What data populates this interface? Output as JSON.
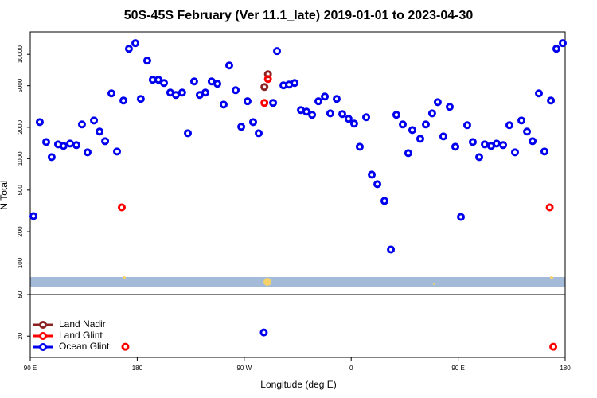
{
  "chart_data": {
    "type": "scatter",
    "title": "50S-45S February (Ver 11.1_late)   2019-01-01 to 2023-04-30",
    "x_label": "Longitude (deg E)",
    "y_label": "N Total",
    "log_y": true,
    "legend": "lower left",
    "xlim": [
      90,
      540
    ],
    "ylim": [
      12.5,
      16400
    ],
    "xticks": [
      {
        "value": 90,
        "label": "90 E"
      },
      180,
      {
        "value": 270,
        "label": "90 W"
      },
      {
        "value": 360,
        "label": "0"
      },
      {
        "value": 450,
        "label": "90 E"
      },
      {
        "value": 540,
        "label": "180"
      }
    ],
    "yticks": [
      20,
      50,
      100,
      200,
      500,
      1000,
      2000,
      5000,
      10000
    ],
    "series": [
      {
        "name": "Land Nadir",
        "color": "#8b2323",
        "x": [
          287,
          290
        ],
        "values": [
          4860,
          6440
        ]
      },
      {
        "name": "Land Glint",
        "color": "#ff0000",
        "x": [
          167,
          170,
          287,
          290,
          527,
          530
        ],
        "values": [
          342,
          15.8,
          3420,
          5800,
          342,
          15.8
        ]
      },
      {
        "name": "Ocean Glint",
        "color": "#0000ee",
        "x": [
          92.7,
          98,
          103.4,
          108,
          113.4,
          118,
          123.5,
          128.8,
          133.5,
          138.2,
          143.6,
          148.3,
          153,
          158.3,
          163,
          168.4,
          173,
          178.4,
          183,
          188.4,
          193,
          197.8,
          202.5,
          207.8,
          212.5,
          217.8,
          222.6,
          227.9,
          232.6,
          237.3,
          242.6,
          247.4,
          252.7,
          257.4,
          262.8,
          267.5,
          272.8,
          277.5,
          282.2,
          286.5,
          294.3,
          297.6,
          303,
          307.7,
          312.4,
          317.7,
          322.4,
          327.1,
          332.4,
          337.8,
          342.4,
          347.8,
          352.5,
          357.8,
          362.5,
          367.2,
          372.6,
          377.3,
          382,
          388,
          393.4,
          398,
          403.4,
          408,
          411.4,
          418.1,
          422.8,
          428.1,
          432.8,
          437.5,
          442.9,
          447.6,
          452.3,
          457.6,
          462.3,
          467.7,
          472.4,
          477.7,
          482.4,
          487.8,
          493.1,
          497.8,
          503.2,
          507.9,
          512.6,
          517.9,
          522.6,
          528,
          532.6,
          538
        ],
        "values": [
          282,
          2244,
          1445,
          1035,
          1372,
          1324,
          1396,
          1349,
          2130,
          1151,
          2324,
          1819,
          1472,
          4227,
          1172,
          3606,
          11300,
          12790,
          3740,
          8690,
          5700,
          5700,
          5310,
          4300,
          4080,
          4300,
          1754,
          5500,
          4080,
          4300,
          5500,
          5220,
          3300,
          7820,
          4530,
          2020,
          3550,
          2244,
          1754,
          21.7,
          3420,
          10730,
          5040,
          5130,
          5310,
          2920,
          2820,
          2630,
          3550,
          3940,
          2720,
          3740,
          2680,
          2410,
          2170,
          1302,
          2495,
          703,
          570,
          394,
          135,
          2630,
          2130,
          1130,
          1880,
          1552,
          2130,
          2720,
          3480,
          1635,
          3135,
          1302,
          277,
          2094,
          1445,
          1035,
          1372,
          1324,
          1396,
          1349,
          2094,
          1151,
          2324,
          1819,
          1472,
          4227,
          1172,
          3606,
          11300,
          12790
        ]
      }
    ]
  }
}
